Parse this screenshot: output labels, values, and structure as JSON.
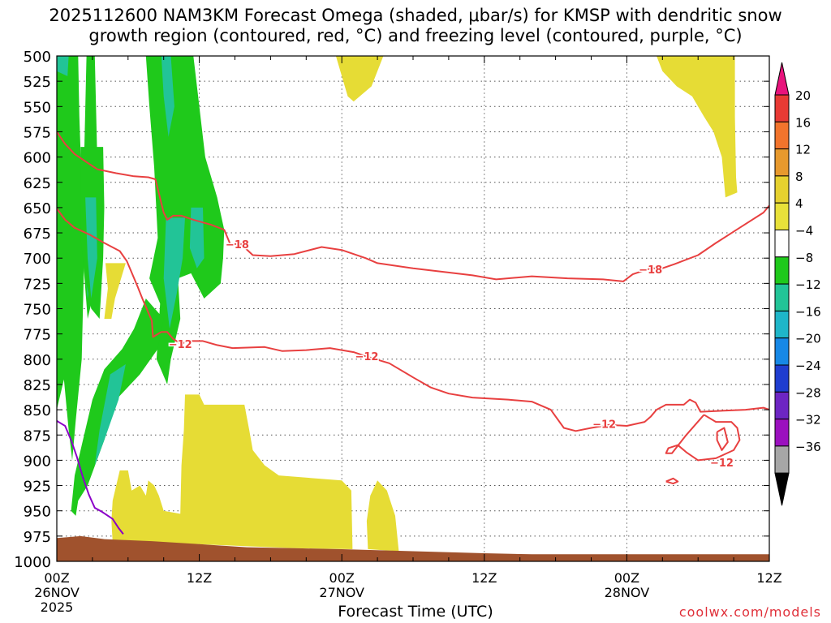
{
  "chart_data": {
    "type": "heatmap",
    "title_line1": "2025112600 NAM3KM Forecast Omega (shaded, μbar/s) for KMSP with dendritic snow",
    "title_line2": "growth region (contoured, red, °C) and freezing level (contoured, purple, °C)",
    "xlabel": "Forecast Time (UTC)",
    "credit": "coolwx.com/models",
    "x_range_hours": [
      0,
      60
    ],
    "y_range_mb": [
      500,
      1000
    ],
    "y_ticks": [
      500,
      525,
      550,
      575,
      600,
      625,
      650,
      675,
      700,
      725,
      750,
      775,
      800,
      825,
      850,
      875,
      900,
      925,
      950,
      975,
      1000
    ],
    "x_ticks": [
      {
        "h": 0,
        "l1": "00Z",
        "l2": "26NOV",
        "l3": "2025"
      },
      {
        "h": 12,
        "l1": "12Z",
        "l2": "",
        "l3": ""
      },
      {
        "h": 24,
        "l1": "00Z",
        "l2": "27NOV",
        "l3": ""
      },
      {
        "h": 36,
        "l1": "12Z",
        "l2": "",
        "l3": ""
      },
      {
        "h": 48,
        "l1": "00Z",
        "l2": "28NOV",
        "l3": ""
      },
      {
        "h": 60,
        "l1": "12Z",
        "l2": "",
        "l3": ""
      }
    ],
    "grid": true,
    "legend": "colorbar-right",
    "colorbar": {
      "labels": [
        "20",
        "16",
        "12",
        "8",
        "4",
        "−4",
        "−8",
        "−12",
        "−16",
        "−20",
        "−24",
        "−28",
        "−32",
        "−36"
      ],
      "top_color": "#e8137c",
      "bottom_color": "#000000",
      "colors": [
        "#e83a34",
        "#f2742c",
        "#e7992d",
        "#e6d12f",
        "#e8e13a",
        "#ffffff",
        "#1fc91b",
        "#22c497",
        "#1fb6c9",
        "#1688e6",
        "#1f3dcf",
        "#6d25c3",
        "#9b10bf",
        "#a6a6a6"
      ]
    },
    "omega_regions": [
      {
        "color": "#1fc91b",
        "pts": [
          [
            0,
            500
          ],
          [
            1.8,
            500
          ],
          [
            1.9,
            560
          ],
          [
            2.3,
            700
          ],
          [
            2.1,
            800
          ],
          [
            1.6,
            860
          ],
          [
            1.3,
            900
          ],
          [
            1.0,
            870
          ],
          [
            0.6,
            820
          ],
          [
            0.2,
            840
          ],
          [
            0,
            850
          ]
        ]
      },
      {
        "color": "#22c497",
        "pts": [
          [
            0,
            500
          ],
          [
            1.0,
            500
          ],
          [
            0.9,
            520
          ],
          [
            0,
            515
          ]
        ]
      },
      {
        "color": "#1fc91b",
        "pts": [
          [
            2.5,
            500
          ],
          [
            3.2,
            500
          ],
          [
            3.4,
            600
          ],
          [
            3.4,
            720
          ],
          [
            2.6,
            760
          ],
          [
            2.2,
            700
          ],
          [
            2.3,
            600
          ]
        ]
      },
      {
        "color": "#22c497",
        "pts": [
          [
            2.2,
            630
          ],
          [
            2.9,
            630
          ],
          [
            3.1,
            700
          ],
          [
            2.6,
            740
          ],
          [
            2.3,
            700
          ]
        ]
      },
      {
        "color": "#1fc91b",
        "pts": [
          [
            7.5,
            500
          ],
          [
            11.5,
            500
          ],
          [
            12,
            550
          ],
          [
            12.5,
            600
          ],
          [
            13.5,
            640
          ],
          [
            14.1,
            672
          ],
          [
            14,
            700
          ],
          [
            13.8,
            725
          ],
          [
            12.4,
            740
          ],
          [
            11.3,
            715
          ],
          [
            10.2,
            720
          ],
          [
            10.4,
            760
          ],
          [
            9.6,
            800
          ],
          [
            9.3,
            825
          ],
          [
            8.4,
            800
          ],
          [
            8.7,
            745
          ],
          [
            7.8,
            720
          ],
          [
            8.5,
            680
          ],
          [
            8.2,
            610
          ],
          [
            7.8,
            550
          ]
        ]
      },
      {
        "color": "#22c497",
        "pts": [
          [
            8.8,
            500
          ],
          [
            9.6,
            500
          ],
          [
            9.9,
            550
          ],
          [
            9.4,
            580
          ],
          [
            9.0,
            540
          ]
        ]
      },
      {
        "color": "#22c497",
        "pts": [
          [
            9.2,
            660
          ],
          [
            10.8,
            660
          ],
          [
            10.6,
            700
          ],
          [
            10.1,
            735
          ],
          [
            9.5,
            770
          ],
          [
            9.0,
            720
          ]
        ]
      },
      {
        "color": "#22c497",
        "pts": [
          [
            11.3,
            650
          ],
          [
            12.3,
            650
          ],
          [
            12.4,
            700
          ],
          [
            11.8,
            710
          ],
          [
            11.2,
            690
          ]
        ]
      },
      {
        "color": "#1fc91b",
        "pts": [
          [
            7.5,
            740
          ],
          [
            9,
            760
          ],
          [
            8.5,
            790
          ],
          [
            7,
            815
          ],
          [
            5,
            840
          ],
          [
            4,
            880
          ],
          [
            2.6,
            925
          ],
          [
            1.8,
            940
          ],
          [
            1.6,
            955
          ],
          [
            1.2,
            950
          ],
          [
            1.5,
            915
          ],
          [
            2.2,
            880
          ],
          [
            3.0,
            840
          ],
          [
            4.0,
            810
          ],
          [
            5.5,
            790
          ],
          [
            6.5,
            770
          ]
        ]
      },
      {
        "color": "#22c497",
        "pts": [
          [
            4.5,
            815
          ],
          [
            5.8,
            805
          ],
          [
            5.2,
            840
          ],
          [
            4.0,
            880
          ],
          [
            3.2,
            905
          ],
          [
            3.6,
            870
          ]
        ]
      },
      {
        "color": "#1fc91b",
        "pts": [
          [
            2.0,
            590
          ],
          [
            3.9,
            590
          ],
          [
            4.0,
            650
          ],
          [
            3.9,
            700
          ],
          [
            3.6,
            760
          ],
          [
            2.9,
            750
          ],
          [
            2.4,
            720
          ],
          [
            2.0,
            680
          ]
        ]
      },
      {
        "color": "#22c497",
        "pts": [
          [
            2.4,
            640
          ],
          [
            3.3,
            640
          ],
          [
            3.4,
            700
          ],
          [
            2.9,
            740
          ],
          [
            2.6,
            700
          ]
        ]
      },
      {
        "color": "#e6dc35",
        "pts": [
          [
            4.1,
            705
          ],
          [
            5.8,
            705
          ],
          [
            4.9,
            740
          ],
          [
            4.6,
            760
          ],
          [
            4.0,
            760
          ],
          [
            4.3,
            730
          ]
        ]
      },
      {
        "color": "#e6dc35",
        "pts": [
          [
            23.5,
            500
          ],
          [
            27.5,
            500
          ],
          [
            26.5,
            530
          ],
          [
            25,
            545
          ],
          [
            24.5,
            540
          ]
        ]
      },
      {
        "color": "#e6dc35",
        "pts": [
          [
            50.5,
            500
          ],
          [
            57.1,
            500
          ],
          [
            57.1,
            560
          ],
          [
            57.2,
            620
          ],
          [
            57.3,
            635
          ],
          [
            56.3,
            640
          ],
          [
            56.0,
            600
          ],
          [
            55.3,
            575
          ],
          [
            54.5,
            560
          ],
          [
            53.5,
            540
          ],
          [
            52.2,
            530
          ],
          [
            51.0,
            515
          ]
        ]
      },
      {
        "color": "#e6dc35",
        "pts": [
          [
            10.8,
            835
          ],
          [
            12.0,
            835
          ],
          [
            12.4,
            845
          ],
          [
            15.8,
            845
          ],
          [
            16.2,
            870
          ],
          [
            16.5,
            890
          ],
          [
            17.5,
            905
          ],
          [
            18.7,
            915
          ],
          [
            24.0,
            920
          ],
          [
            24.8,
            930
          ],
          [
            24.9,
            988
          ],
          [
            20,
            987
          ],
          [
            10,
            982
          ],
          [
            4.7,
            981
          ],
          [
            4.6,
            960
          ],
          [
            4.7,
            940
          ],
          [
            5.3,
            910
          ],
          [
            6.0,
            910
          ],
          [
            6.3,
            930
          ],
          [
            7.0,
            925
          ],
          [
            7.5,
            935
          ],
          [
            7.7,
            920
          ],
          [
            8.2,
            925
          ],
          [
            8.6,
            935
          ],
          [
            9.0,
            950
          ],
          [
            10.4,
            953
          ],
          [
            10.5,
            905
          ],
          [
            10.7,
            870
          ]
        ]
      },
      {
        "color": "#e6dc35",
        "pts": [
          [
            26.4,
            935
          ],
          [
            27.0,
            920
          ],
          [
            27.8,
            930
          ],
          [
            28.5,
            955
          ],
          [
            28.8,
            990
          ],
          [
            26.2,
            988
          ],
          [
            26.1,
            960
          ]
        ]
      }
    ],
    "surface_color": "#a0522d",
    "surface_mb": [
      [
        0,
        977
      ],
      [
        1,
        976
      ],
      [
        2,
        975
      ],
      [
        4,
        978
      ],
      [
        8,
        980
      ],
      [
        12,
        983
      ],
      [
        16,
        986
      ],
      [
        20,
        987
      ],
      [
        24,
        988
      ],
      [
        30,
        990
      ],
      [
        36,
        992
      ],
      [
        40,
        993
      ],
      [
        48,
        993
      ],
      [
        54,
        993
      ],
      [
        60,
        993
      ]
    ],
    "dgz_color": "#e84040",
    "dgz_lines": [
      [
        [
          0,
          575
        ],
        [
          0.7,
          587
        ],
        [
          1.5,
          597
        ],
        [
          2.5,
          605
        ],
        [
          3.4,
          612
        ],
        [
          5,
          616
        ],
        [
          6.5,
          619
        ],
        [
          7.7,
          620
        ],
        [
          8.3,
          622
        ],
        [
          9.0,
          655
        ],
        [
          9.3,
          662
        ],
        [
          9.8,
          658
        ],
        [
          10.5,
          658
        ],
        [
          11.5,
          662
        ],
        [
          13.0,
          667
        ],
        [
          14.1,
          672
        ],
        [
          14.6,
          686
        ],
        [
          15.5,
          686
        ],
        [
          16.5,
          697
        ],
        [
          18,
          698
        ],
        [
          20,
          696
        ],
        [
          22.3,
          689
        ],
        [
          24,
          692
        ],
        [
          26,
          700
        ],
        [
          27,
          705
        ],
        [
          30,
          710
        ],
        [
          35,
          717
        ],
        [
          37,
          721
        ],
        [
          40,
          718
        ],
        [
          43,
          720
        ],
        [
          46,
          721
        ],
        [
          47.7,
          723
        ],
        [
          48.5,
          716
        ],
        [
          49.5,
          712
        ],
        [
          50,
          710
        ],
        [
          51,
          710
        ],
        [
          52,
          706
        ],
        [
          54,
          697
        ],
        [
          55.5,
          685
        ],
        [
          57.5,
          670
        ],
        [
          59.5,
          655
        ],
        [
          60,
          648
        ]
      ],
      [
        [
          0,
          651
        ],
        [
          0.7,
          662
        ],
        [
          1.5,
          670
        ],
        [
          2.8,
          677
        ],
        [
          4,
          685
        ],
        [
          5.3,
          693
        ],
        [
          5.9,
          703
        ],
        [
          6.8,
          728
        ],
        [
          7.2,
          740
        ],
        [
          8,
          762
        ],
        [
          8.1,
          778
        ],
        [
          8.8,
          773
        ],
        [
          9.3,
          773
        ],
        [
          9.8,
          780
        ],
        [
          10.5,
          785
        ],
        [
          11,
          782
        ],
        [
          12.3,
          782
        ],
        [
          13.5,
          786
        ],
        [
          14.8,
          789
        ],
        [
          17.5,
          788
        ],
        [
          19,
          792
        ],
        [
          21,
          791
        ],
        [
          23,
          789
        ],
        [
          25,
          793
        ],
        [
          26,
          797
        ],
        [
          28,
          804
        ],
        [
          30,
          818
        ],
        [
          31.5,
          828
        ],
        [
          33,
          834
        ],
        [
          35,
          838
        ],
        [
          38,
          840
        ],
        [
          40,
          842
        ],
        [
          41.6,
          850
        ],
        [
          42.7,
          868
        ],
        [
          43.7,
          871
        ],
        [
          45,
          868
        ],
        [
          46.5,
          865
        ],
        [
          48,
          866
        ],
        [
          49.5,
          862
        ],
        [
          50,
          857
        ],
        [
          50.5,
          850
        ],
        [
          51.3,
          845
        ],
        [
          52.8,
          845
        ],
        [
          53.3,
          840
        ],
        [
          53.8,
          843
        ],
        [
          54.2,
          852
        ],
        [
          58,
          850
        ],
        [
          59.5,
          848
        ],
        [
          60,
          850
        ]
      ],
      [
        [
          54.5,
          855
        ],
        [
          55.5,
          862
        ],
        [
          56.8,
          862
        ],
        [
          57.3,
          868
        ],
        [
          57.5,
          880
        ],
        [
          57.0,
          890
        ],
        [
          55.5,
          898
        ],
        [
          54,
          900
        ],
        [
          53,
          892
        ],
        [
          52.3,
          885
        ],
        [
          51.5,
          888
        ],
        [
          51.3,
          893
        ],
        [
          51.8,
          893
        ],
        [
          53,
          875
        ],
        [
          54.5,
          855
        ]
      ],
      [
        [
          55.6,
          872
        ],
        [
          56.2,
          868
        ],
        [
          56.5,
          882
        ],
        [
          56.0,
          890
        ],
        [
          55.6,
          880
        ],
        [
          55.6,
          872
        ]
      ],
      [
        [
          51.3,
          921
        ],
        [
          51.9,
          918
        ],
        [
          52.3,
          921
        ],
        [
          51.9,
          923
        ],
        [
          51.3,
          921
        ]
      ]
    ],
    "dgz_labels": [
      {
        "h": 15.2,
        "mb": 686,
        "text": "−18"
      },
      {
        "h": 50.0,
        "mb": 711,
        "text": "−18"
      },
      {
        "h": 10.4,
        "mb": 785,
        "text": "−12"
      },
      {
        "h": 26.1,
        "mb": 797,
        "text": "−12"
      },
      {
        "h": 46.1,
        "mb": 864,
        "text": "−12"
      },
      {
        "h": 56.0,
        "mb": 902,
        "text": "−12"
      }
    ],
    "freezing_color": "#8b00c8",
    "freezing_line": [
      [
        0,
        861
      ],
      [
        0.7,
        866
      ],
      [
        1.2,
        880
      ],
      [
        1.7,
        897
      ],
      [
        2.2,
        917
      ],
      [
        2.7,
        934
      ],
      [
        3.2,
        947
      ],
      [
        3.8,
        951
      ],
      [
        4.7,
        958
      ],
      [
        5.2,
        967
      ],
      [
        5.6,
        973
      ]
    ]
  }
}
